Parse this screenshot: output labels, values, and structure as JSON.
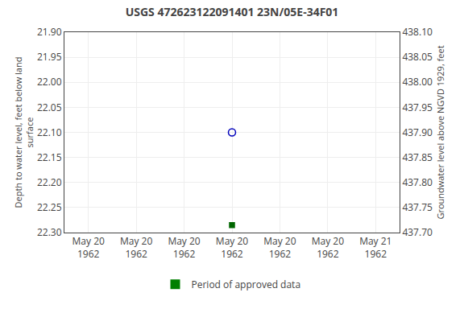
{
  "chart_data": {
    "type": "scatter",
    "title": "USGS 472623122091401 23N/05E-34F01",
    "ylabel": "Depth to water level, feet below land\nsurface",
    "y2label": "Groundwater level above NGVD 1929, feet",
    "categories": [
      "May 20\n1962",
      "May 20\n1962",
      "May 20\n1962",
      "May 20\n1962",
      "May 20\n1962",
      "May 20\n1962",
      "May 21\n1962"
    ],
    "series": [
      {
        "color": "#0000bb",
        "marker": "open_circle",
        "values": [
          null,
          null,
          null,
          22.1,
          null,
          null,
          null
        ]
      },
      {
        "color": "#006600",
        "marker": "square",
        "values": [
          null,
          null,
          null,
          22.285,
          null,
          null,
          null
        ]
      },
      {
        "name": "Period of approved data",
        "color": "#008000",
        "type": "bar",
        "values": [
          null,
          null,
          null,
          null,
          null,
          null,
          null
        ]
      }
    ],
    "ylim": [
      22.3,
      21.9
    ],
    "yticks": [
      {
        "value": 21.9,
        "label": "21.90"
      },
      {
        "value": 21.95,
        "label": "21.95"
      },
      {
        "value": 22.0,
        "label": "22.00"
      },
      {
        "value": 22.05,
        "label": "22.05"
      },
      {
        "value": 22.1,
        "label": "22.10"
      },
      {
        "value": 22.15,
        "label": "22.15"
      },
      {
        "value": 22.2,
        "label": "22.20"
      },
      {
        "value": 22.25,
        "label": "22.25"
      },
      {
        "value": 22.3,
        "label": "22.30"
      }
    ],
    "y2lim": [
      437.7,
      438.1
    ],
    "y2ticks": [
      {
        "value": 438.1,
        "label": "438.10"
      },
      {
        "value": 438.05,
        "label": "438.05"
      },
      {
        "value": 438.0,
        "label": "438.00"
      },
      {
        "value": 437.95,
        "label": "437.95"
      },
      {
        "value": 437.9,
        "label": "437.90"
      },
      {
        "value": 437.85,
        "label": "437.85"
      },
      {
        "value": 437.8,
        "label": "437.80"
      },
      {
        "value": 437.75,
        "label": "437.75"
      },
      {
        "value": 437.7,
        "label": "437.70"
      }
    ],
    "grid": true,
    "legend": "bottom"
  }
}
